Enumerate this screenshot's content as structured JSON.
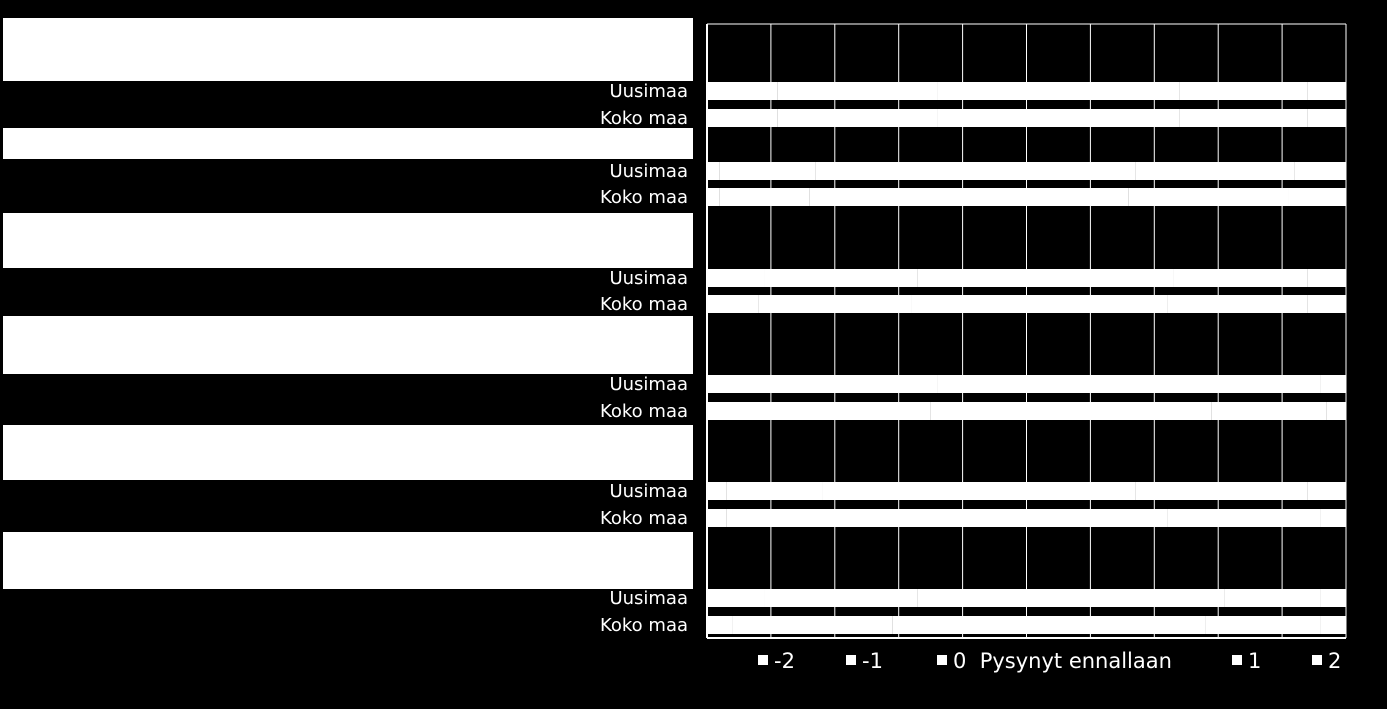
{
  "chart_data": {
    "type": "bar",
    "stacked": "100%",
    "orientation": "horizontal",
    "title": "",
    "question_groups": [
      {
        "title": "",
        "rows": [
          "Uusimaa",
          "Koko maa"
        ]
      },
      {
        "title": "",
        "rows": [
          "Uusimaa",
          "Koko maa"
        ]
      },
      {
        "title": "",
        "rows": [
          "Uusimaa",
          "Koko maa"
        ]
      },
      {
        "title": "",
        "rows": [
          "Uusimaa",
          "Koko maa"
        ]
      },
      {
        "title": "",
        "rows": [
          "Uusimaa",
          "Koko maa"
        ]
      },
      {
        "title": "",
        "rows": [
          "Uusimaa",
          "Koko maa"
        ]
      }
    ],
    "categories": [
      "Uusimaa",
      "Koko maa",
      "Uusimaa",
      "Koko maa",
      "Uusimaa",
      "Koko maa",
      "Uusimaa",
      "Koko maa",
      "Uusimaa",
      "Koko maa",
      "Uusimaa",
      "Koko maa"
    ],
    "series": [
      {
        "name": "-2",
        "values": [
          11,
          11,
          2,
          2,
          9,
          8,
          10,
          10,
          3,
          3,
          9,
          4
        ]
      },
      {
        "name": "-1",
        "values": [
          25,
          25,
          15,
          14,
          24,
          24,
          26,
          25,
          15,
          17,
          24,
          25
        ]
      },
      {
        "name": "0  Pysynyt ennallaan",
        "values": [
          38,
          38,
          50,
          50,
          40,
          40,
          44,
          44,
          49,
          52,
          48,
          49
        ]
      },
      {
        "name": "1",
        "values": [
          20,
          20,
          25,
          25,
          21,
          22,
          16,
          18,
          27,
          24,
          15,
          18
        ]
      },
      {
        "name": "2",
        "values": [
          6,
          6,
          8,
          9,
          6,
          6,
          4,
          3,
          6,
          4,
          4,
          4
        ]
      }
    ],
    "xlim": [
      0,
      100
    ],
    "grid": true,
    "legend": {
      "position": "bottom",
      "entries": [
        "-2",
        "-1",
        "0  Pysynyt ennallaan",
        "1",
        "2"
      ]
    },
    "colors": {
      "background": "#000000",
      "bar": "#ffffff",
      "text": "#ffffff",
      "grid": "#ffffff"
    }
  }
}
